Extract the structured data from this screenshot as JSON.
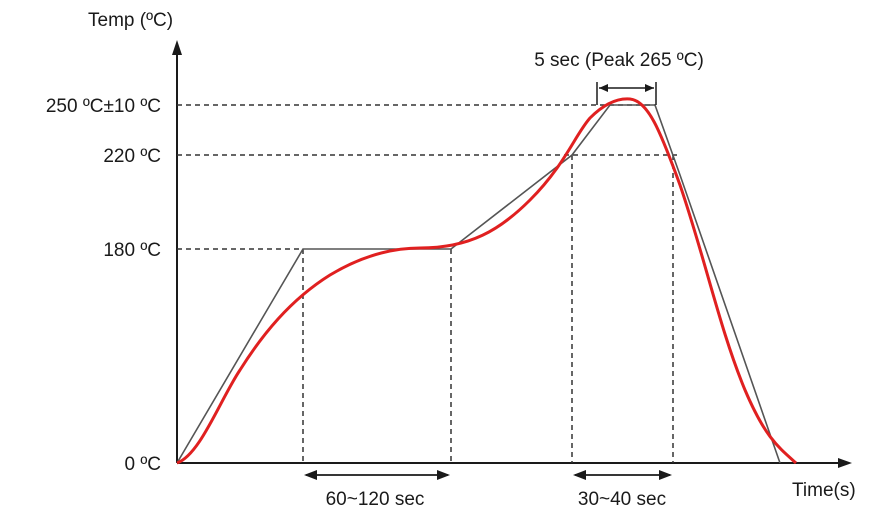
{
  "chart_data": {
    "type": "line",
    "title": "",
    "ylabel": "Temp (ºC)",
    "xlabel": "Time(s)",
    "y_ticks": [
      {
        "value": 0,
        "label": "0 ºC"
      },
      {
        "value": 180,
        "label": "180 ºC"
      },
      {
        "value": 220,
        "label": "220 ºC"
      },
      {
        "value": 250,
        "label": "250 ºC±10 ºC"
      }
    ],
    "annotations": {
      "peak": "5 sec (Peak 265 ºC)",
      "soak": "60~120 sec",
      "reflow": "30~40 sec"
    },
    "series": [
      {
        "role": "reference profile",
        "color": "#555555",
        "points": [
          [
            0,
            0
          ],
          [
            1,
            86
          ],
          [
            2,
            180
          ],
          [
            4,
            180
          ],
          [
            5.8,
            220
          ],
          [
            6.6,
            265
          ],
          [
            7.2,
            265
          ],
          [
            8,
            210
          ],
          [
            10.3,
            0
          ]
        ]
      },
      {
        "role": "actual profile",
        "color": "#e02020",
        "points": [
          [
            0,
            0
          ],
          [
            0.5,
            20
          ],
          [
            1.2,
            90
          ],
          [
            2.2,
            160
          ],
          [
            3.4,
            180
          ],
          [
            4.2,
            180
          ],
          [
            5.2,
            200
          ],
          [
            6.1,
            255
          ],
          [
            6.9,
            265
          ],
          [
            7.6,
            240
          ],
          [
            8.2,
            190
          ],
          [
            9.0,
            120
          ],
          [
            9.8,
            40
          ],
          [
            10.6,
            0
          ]
        ]
      }
    ],
    "markers_x": [
      2,
      4,
      5.8,
      6.6,
      7.2,
      8
    ],
    "colors": {
      "axis": "#1a1a1a",
      "guide": "#333333",
      "reference": "#555555",
      "actual": "#e02020"
    }
  }
}
